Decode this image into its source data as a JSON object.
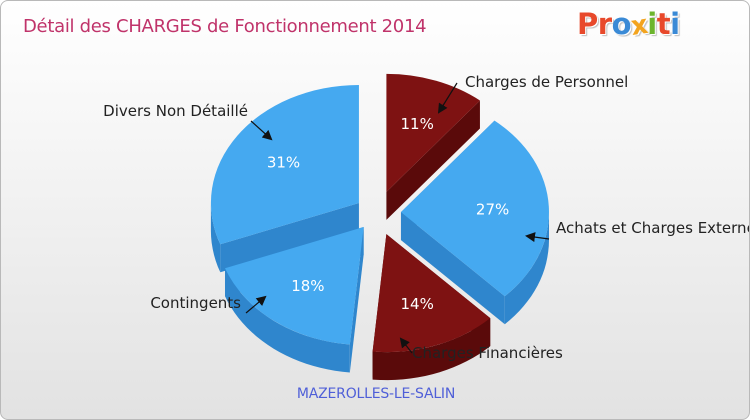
{
  "header": {
    "title": "Détail des CHARGES de Fonctionnement 2014",
    "logo": [
      "P",
      "r",
      "o",
      "x",
      "i",
      "t",
      "i"
    ]
  },
  "footer": {
    "commune": "MAZEROLLES-LE-SALIN"
  },
  "colors": {
    "title": "#c0336a",
    "subtitle": "#4f5fd8",
    "logo": [
      "#e8492b",
      "#e8492b",
      "#3a8ad6",
      "#f3a41e",
      "#6cb52d",
      "#e8492b",
      "#3a8ad6"
    ],
    "blue_top": "#45a9f0",
    "blue_side": "#2f86cd",
    "red_top": "#7e1212",
    "red_side": "#5a0a0a"
  },
  "chart_data": {
    "type": "pie",
    "title": "Détail des CHARGES de Fonctionnement 2014",
    "slices": [
      {
        "label": "Charges de Personnel",
        "value": 11,
        "pct_label": "11%",
        "color": "red"
      },
      {
        "label": "Achats et Charges Externes",
        "value": 27,
        "pct_label": "27%",
        "color": "blue"
      },
      {
        "label": "Charges Financières",
        "value": 14,
        "pct_label": "14%",
        "color": "red"
      },
      {
        "label": "Contingents",
        "value": 18,
        "pct_label": "18%",
        "color": "blue"
      },
      {
        "label": "Divers Non Détaillé",
        "value": 31,
        "pct_label": "31%",
        "color": "blue"
      }
    ]
  }
}
